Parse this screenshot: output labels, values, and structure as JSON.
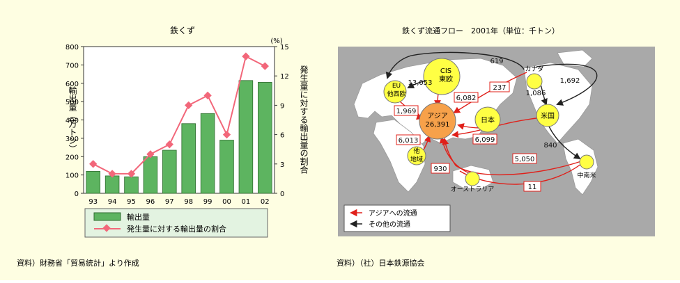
{
  "left_panel": {
    "title": "鉄くず",
    "source": "資料）財務省「貿易統計」より作成"
  },
  "right_panel": {
    "title": "鉄くず流通フロー　2001年（単位：千トン）",
    "source": "資料）（社）日本鉄源協会",
    "nodes": {
      "cis": [
        "CIS",
        "東欧"
      ],
      "eu": [
        "EU",
        "他西欧"
      ],
      "asia": [
        "アジア",
        "26,391"
      ],
      "japan": "日本",
      "other": [
        "他",
        "地域"
      ],
      "canada": "カナダ",
      "usa": "米国",
      "latam": "中南米",
      "australia": "オーストラリア"
    },
    "flows": {
      "canada_to_eu_top": "619",
      "canada_to_usa_right": "1,692",
      "cis_to_eu": "13,053",
      "canada_to_usa": "1,086",
      "usa_to_latam": "840",
      "cis_to_asia": "6,082",
      "canada_to_asia": "237",
      "eu_to_asia": "1,969",
      "japan_to_asia": "6,099",
      "other_to_asia": "6,013",
      "usa_to_asia": "5,050",
      "australia_to_asia": "930",
      "latam_to_asia": "11"
    },
    "legend": {
      "asia_flow": "アジアへの流通",
      "other_flow": "その他の流通"
    },
    "colors": {
      "asia_flow": "#e0201a",
      "other_flow": "#222222",
      "bubble": "#ffff44",
      "asia_bubble": "#f7a14a",
      "map_water": "#a9a9a9",
      "land": "#ffffff"
    }
  },
  "chart_data": {
    "type": "bar",
    "title": "鉄くず",
    "categories": [
      "93",
      "94",
      "95",
      "96",
      "97",
      "98",
      "99",
      "00",
      "01",
      "02"
    ],
    "series": [
      {
        "name": "輸出量",
        "type": "bar",
        "axis": "left",
        "color": "#5db460",
        "values": [
          120,
          95,
          90,
          200,
          235,
          380,
          435,
          290,
          615,
          605
        ]
      },
      {
        "name": "発生量に対する輸出量の割合",
        "type": "line",
        "axis": "right",
        "color": "#f2677a",
        "values": [
          3,
          2,
          2,
          4,
          5,
          9,
          10,
          6,
          14,
          13
        ]
      }
    ],
    "ylabel": "輸出量（万トン）",
    "y2label": "発生量に対する輸出量の割合",
    "y2unit": "(%)",
    "ylim": [
      0,
      800
    ],
    "yticks": [
      "0",
      "100",
      "200",
      "300",
      "400",
      "500",
      "600",
      "700",
      "800"
    ],
    "y2lim": [
      0,
      15
    ],
    "y2ticks": [
      "0",
      "3",
      "6",
      "9",
      "12",
      "15"
    ],
    "legend_position": "bottom"
  }
}
